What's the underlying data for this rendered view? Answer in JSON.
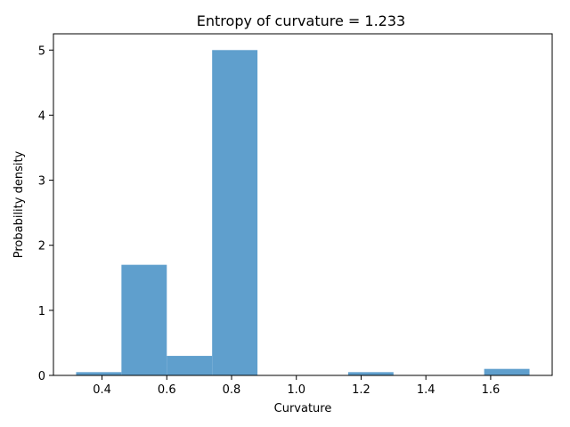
{
  "chart_data": {
    "type": "bar",
    "title": "Entropy of curvature = 1.233",
    "xlabel": "Curvature",
    "ylabel": "Probability density",
    "bins": [
      {
        "x0": 0.32,
        "x1": 0.46,
        "value": 0.05
      },
      {
        "x0": 0.46,
        "x1": 0.6,
        "value": 1.7
      },
      {
        "x0": 0.6,
        "x1": 0.74,
        "value": 0.3
      },
      {
        "x0": 0.74,
        "x1": 0.88,
        "value": 5.0
      },
      {
        "x0": 0.88,
        "x1": 1.02,
        "value": 0.0
      },
      {
        "x0": 1.02,
        "x1": 1.16,
        "value": 0.0
      },
      {
        "x0": 1.16,
        "x1": 1.3,
        "value": 0.05
      },
      {
        "x0": 1.3,
        "x1": 1.44,
        "value": 0.0
      },
      {
        "x0": 1.44,
        "x1": 1.58,
        "value": 0.0
      },
      {
        "x0": 1.58,
        "x1": 1.72,
        "value": 0.1
      }
    ],
    "xlim": [
      0.25,
      1.79
    ],
    "ylim": [
      0,
      5.25
    ],
    "xticks": [
      0.4,
      0.6,
      0.8,
      1.0,
      1.2,
      1.4,
      1.6
    ],
    "xtick_labels": [
      "0.4",
      "0.6",
      "0.8",
      "1.0",
      "1.2",
      "1.4",
      "1.6"
    ],
    "yticks": [
      0,
      1,
      2,
      3,
      4,
      5
    ],
    "ytick_labels": [
      "0",
      "1",
      "2",
      "3",
      "4",
      "5"
    ],
    "grid": false,
    "bar_color": "#5f9fcd"
  }
}
